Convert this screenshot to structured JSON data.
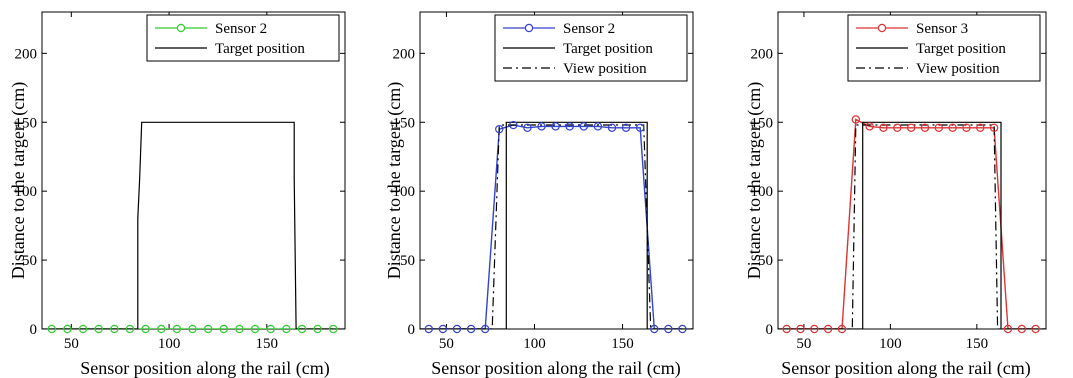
{
  "chart_data": [
    {
      "type": "line",
      "xlabel": "Sensor position along the rail (cm)",
      "ylabel": "Distance to the targert (cm)",
      "xlim": [
        35,
        190
      ],
      "ylim": [
        0,
        230
      ],
      "xticks": [
        50,
        100,
        150
      ],
      "yticks": [
        0,
        50,
        100,
        150,
        200
      ],
      "legend_position": "top-right",
      "series": [
        {
          "name": "Sensor 2",
          "color": "#33cc33",
          "style": "solid",
          "marker": "circle",
          "x": [
            40,
            48,
            56,
            64,
            72,
            80,
            88,
            96,
            104,
            112,
            120,
            128,
            136,
            144,
            152,
            160,
            168,
            176,
            184
          ],
          "y": [
            0,
            0,
            0,
            0,
            0,
            0,
            0,
            0,
            0,
            0,
            0,
            0,
            0,
            0,
            0,
            0,
            0,
            0,
            0
          ]
        },
        {
          "name": "Target position",
          "color": "#000000",
          "style": "solid",
          "marker": "none",
          "x": [
            35,
            84,
            84,
            85,
            86,
            164,
            164,
            165,
            190
          ],
          "y": [
            0,
            0,
            80,
            110,
            150,
            150,
            110,
            0,
            0
          ]
        }
      ]
    },
    {
      "type": "line",
      "xlabel": "Sensor position along the rail (cm)",
      "ylabel": "Distance to the targert (cm)",
      "xlim": [
        35,
        190
      ],
      "ylim": [
        0,
        230
      ],
      "xticks": [
        50,
        100,
        150
      ],
      "yticks": [
        0,
        50,
        100,
        150,
        200
      ],
      "legend_position": "top-right",
      "series": [
        {
          "name": "Sensor 2",
          "color": "#3344cc",
          "style": "solid",
          "marker": "circle",
          "x": [
            40,
            48,
            56,
            64,
            72,
            80,
            88,
            96,
            104,
            112,
            120,
            128,
            136,
            144,
            152,
            160,
            168,
            176,
            184
          ],
          "y": [
            0,
            0,
            0,
            0,
            0,
            145,
            148,
            146,
            147,
            147,
            147,
            147,
            147,
            146,
            146,
            146,
            0,
            0,
            0
          ]
        },
        {
          "name": "Target position",
          "color": "#000000",
          "style": "solid",
          "marker": "none",
          "x": [
            35,
            84,
            84,
            164,
            164,
            190
          ],
          "y": [
            0,
            0,
            150,
            150,
            0,
            0
          ]
        },
        {
          "name": "View position",
          "color": "#000000",
          "style": "dashdot",
          "marker": "none",
          "x": [
            35,
            76,
            80,
            162,
            166,
            190
          ],
          "y": [
            0,
            0,
            148,
            148,
            0,
            0
          ]
        }
      ]
    },
    {
      "type": "line",
      "xlabel": "Sensor position along the rail (cm)",
      "ylabel": "Distance to the targert (cm)",
      "xlim": [
        35,
        190
      ],
      "ylim": [
        0,
        230
      ],
      "xticks": [
        50,
        100,
        150
      ],
      "yticks": [
        0,
        50,
        100,
        150,
        200
      ],
      "legend_position": "top-right",
      "series": [
        {
          "name": "Sensor 3",
          "color": "#dd3333",
          "style": "solid",
          "marker": "circle",
          "x": [
            40,
            48,
            56,
            64,
            72,
            80,
            88,
            96,
            104,
            112,
            120,
            128,
            136,
            144,
            152,
            160,
            168,
            176,
            184
          ],
          "y": [
            0,
            0,
            0,
            0,
            0,
            152,
            147,
            146,
            146,
            146,
            146,
            146,
            146,
            146,
            146,
            146,
            0,
            0,
            0
          ]
        },
        {
          "name": "Target position",
          "color": "#000000",
          "style": "solid",
          "marker": "none",
          "x": [
            35,
            84,
            84,
            164,
            164,
            190
          ],
          "y": [
            0,
            0,
            150,
            150,
            0,
            0
          ]
        },
        {
          "name": "View position",
          "color": "#000000",
          "style": "dashdot",
          "marker": "none",
          "x": [
            35,
            78,
            80,
            160,
            162,
            190
          ],
          "y": [
            0,
            0,
            148,
            148,
            0,
            0
          ]
        }
      ]
    }
  ]
}
